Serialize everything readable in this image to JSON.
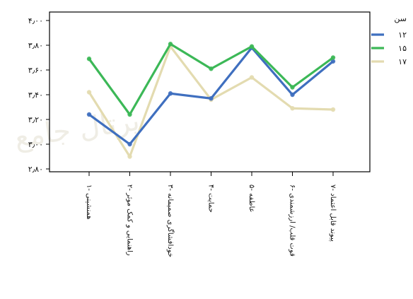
{
  "chart_data": {
    "type": "line",
    "ylim": [
      2.8,
      4.0
    ],
    "yticks": [
      2.8,
      3.0,
      3.2,
      3.4,
      3.6,
      3.8,
      4.0
    ],
    "ytick_labels": [
      "۲٫۸۰",
      "۳٫۰۰",
      "۳٫۲۰",
      "۳٫۴۰",
      "۳٫۶۰",
      "۳٫۸۰",
      "۴٫۰۰"
    ],
    "categories": [
      "۱- همنشینی",
      "۲- راهنمایی و کمک موثر",
      "۳- خودافشاگری صمیمانه",
      "۴- حمایت",
      "۵- عاطفه",
      "۶- قوت قلب/ ارزشمندی",
      "۷- پیوند قابل اعتماد"
    ],
    "legend_title": "سن",
    "legend_position": "top-right",
    "grid": false,
    "series": [
      {
        "name": "۱۲",
        "color": "#3f6fbf",
        "values": [
          3.24,
          3.0,
          3.41,
          3.37,
          3.78,
          3.4,
          3.67
        ]
      },
      {
        "name": "۱۵",
        "color": "#3cb857",
        "values": [
          3.69,
          3.24,
          3.81,
          3.61,
          3.79,
          3.46,
          3.7
        ]
      },
      {
        "name": "۱۷",
        "color": "#e3dbb0",
        "values": [
          3.42,
          2.9,
          3.79,
          3.36,
          3.54,
          3.29,
          3.28
        ]
      }
    ]
  }
}
